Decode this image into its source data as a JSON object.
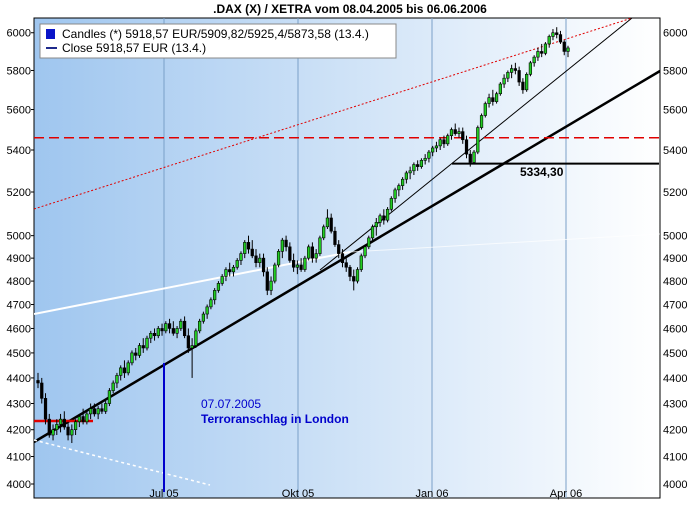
{
  "chart_data": {
    "type": "candlestick",
    "title": ".DAX (X) / XETRA vom 08.04.2005 bis 06.06.2006",
    "legend": [
      {
        "name": "Candles (*) 5918,57 EUR/5909,82/5925,4/5873,58 (13.4.)",
        "swatch": "#0a14c8"
      },
      {
        "name": "Close 5918,57 EUR (13.4.)",
        "swatch": "#1e2a8c"
      }
    ],
    "legend_position": "top-left",
    "y_ticks": [
      4000,
      4100,
      4200,
      4300,
      4400,
      4500,
      4600,
      4700,
      4800,
      4900,
      5000,
      5200,
      5400,
      5600,
      5800,
      6000
    ],
    "x_ticks": [
      "Jul 05",
      "Okt 05",
      "Jan 06",
      "Apr 06"
    ],
    "ylim": [
      3950,
      6080
    ],
    "y_scale": "log",
    "grid": "vertical",
    "colors": {
      "up": "#22cc22",
      "down": "#000000",
      "bg_left": "#9fc6ef",
      "bg_right": "#ffffff"
    },
    "trend_lines": [
      {
        "label": "support (thick)",
        "color": "#000000"
      },
      {
        "label": "steep trend",
        "color": "#000000"
      },
      {
        "label": "upper channel",
        "color": "#e00000",
        "style": "dotted"
      },
      {
        "label": "resistance",
        "color": "#e00000",
        "style": "dashed",
        "value": 5460
      },
      {
        "label": "lower white line",
        "color": "#ffffff"
      },
      {
        "label": "upper white line",
        "color": "#ffffff"
      },
      {
        "label": "support level",
        "color": "#000000",
        "value": 5334.3,
        "text": "5334,30"
      },
      {
        "label": "start level",
        "color": "#e00000"
      }
    ],
    "annotations": [
      {
        "date": "07.07.2005",
        "text_lines": [
          "07.07.2005",
          "Terroranschlag in London"
        ],
        "color": "#0000cc"
      }
    ],
    "candles": [
      [
        4390,
        4420,
        4360,
        4380
      ],
      [
        4380,
        4400,
        4300,
        4320
      ],
      [
        4320,
        4340,
        4220,
        4240
      ],
      [
        4240,
        4260,
        4170,
        4180
      ],
      [
        4180,
        4220,
        4160,
        4200
      ],
      [
        4200,
        4240,
        4180,
        4220
      ],
      [
        4220,
        4260,
        4190,
        4240
      ],
      [
        4240,
        4270,
        4200,
        4210
      ],
      [
        4210,
        4230,
        4160,
        4180
      ],
      [
        4180,
        4220,
        4150,
        4200
      ],
      [
        4200,
        4240,
        4180,
        4230
      ],
      [
        4230,
        4260,
        4210,
        4250
      ],
      [
        4250,
        4280,
        4220,
        4230
      ],
      [
        4230,
        4270,
        4220,
        4260
      ],
      [
        4260,
        4300,
        4240,
        4280
      ],
      [
        4280,
        4300,
        4250,
        4260
      ],
      [
        4260,
        4290,
        4240,
        4280
      ],
      [
        4280,
        4300,
        4260,
        4270
      ],
      [
        4270,
        4310,
        4260,
        4300
      ],
      [
        4300,
        4360,
        4290,
        4350
      ],
      [
        4350,
        4390,
        4340,
        4380
      ],
      [
        4380,
        4420,
        4360,
        4410
      ],
      [
        4410,
        4450,
        4390,
        4440
      ],
      [
        4440,
        4470,
        4400,
        4420
      ],
      [
        4420,
        4470,
        4410,
        4460
      ],
      [
        4460,
        4510,
        4450,
        4500
      ],
      [
        4500,
        4520,
        4470,
        4490
      ],
      [
        4490,
        4540,
        4480,
        4530
      ],
      [
        4530,
        4560,
        4500,
        4520
      ],
      [
        4520,
        4570,
        4510,
        4560
      ],
      [
        4560,
        4590,
        4540,
        4580
      ],
      [
        4580,
        4600,
        4550,
        4570
      ],
      [
        4570,
        4610,
        4560,
        4600
      ],
      [
        4600,
        4620,
        4570,
        4590
      ],
      [
        4590,
        4630,
        4580,
        4620
      ],
      [
        4620,
        4640,
        4580,
        4600
      ],
      [
        4600,
        4630,
        4570,
        4580
      ],
      [
        4580,
        4610,
        4560,
        4600
      ],
      [
        4600,
        4640,
        4590,
        4630
      ],
      [
        4630,
        4650,
        4560,
        4570
      ],
      [
        4570,
        4600,
        4500,
        4520
      ],
      [
        4520,
        4560,
        4400,
        4530
      ],
      [
        4530,
        4600,
        4520,
        4590
      ],
      [
        4590,
        4640,
        4580,
        4630
      ],
      [
        4630,
        4670,
        4620,
        4660
      ],
      [
        4660,
        4700,
        4640,
        4690
      ],
      [
        4690,
        4730,
        4680,
        4720
      ],
      [
        4720,
        4770,
        4700,
        4760
      ],
      [
        4760,
        4800,
        4750,
        4790
      ],
      [
        4790,
        4830,
        4780,
        4820
      ],
      [
        4820,
        4860,
        4800,
        4850
      ],
      [
        4850,
        4880,
        4820,
        4840
      ],
      [
        4840,
        4870,
        4820,
        4860
      ],
      [
        4860,
        4900,
        4850,
        4890
      ],
      [
        4890,
        4930,
        4870,
        4920
      ],
      [
        4920,
        4980,
        4900,
        4970
      ],
      [
        4970,
        5000,
        4920,
        4940
      ],
      [
        4940,
        4980,
        4900,
        4910
      ],
      [
        4910,
        4940,
        4860,
        4880
      ],
      [
        4880,
        4920,
        4860,
        4900
      ],
      [
        4900,
        4920,
        4820,
        4840
      ],
      [
        4840,
        4860,
        4740,
        4760
      ],
      [
        4760,
        4820,
        4740,
        4800
      ],
      [
        4800,
        4880,
        4790,
        4870
      ],
      [
        4870,
        4940,
        4860,
        4930
      ],
      [
        4930,
        4990,
        4900,
        4980
      ],
      [
        4980,
        5000,
        4930,
        4950
      ],
      [
        4950,
        4970,
        4880,
        4890
      ],
      [
        4890,
        4920,
        4840,
        4860
      ],
      [
        4860,
        4890,
        4830,
        4870
      ],
      [
        4870,
        4900,
        4840,
        4850
      ],
      [
        4850,
        4910,
        4840,
        4900
      ],
      [
        4900,
        4960,
        4890,
        4950
      ],
      [
        4950,
        4970,
        4880,
        4900
      ],
      [
        4900,
        4940,
        4880,
        4920
      ],
      [
        4920,
        5000,
        4910,
        4990
      ],
      [
        4990,
        5050,
        4980,
        5040
      ],
      [
        5040,
        5120,
        5030,
        5080
      ],
      [
        5080,
        5100,
        5010,
        5020
      ],
      [
        5020,
        5040,
        4950,
        4960
      ],
      [
        4960,
        4980,
        4900,
        4920
      ],
      [
        4920,
        4940,
        4860,
        4880
      ],
      [
        4880,
        4900,
        4840,
        4860
      ],
      [
        4860,
        4870,
        4800,
        4820
      ],
      [
        4820,
        4850,
        4760,
        4800
      ],
      [
        4800,
        4860,
        4790,
        4850
      ],
      [
        4850,
        4920,
        4840,
        4910
      ],
      [
        4910,
        4960,
        4900,
        4950
      ],
      [
        4950,
        5000,
        4940,
        4990
      ],
      [
        4990,
        5050,
        4980,
        5040
      ],
      [
        5040,
        5080,
        5000,
        5060
      ],
      [
        5060,
        5100,
        5040,
        5090
      ],
      [
        5090,
        5120,
        5050,
        5070
      ],
      [
        5070,
        5130,
        5060,
        5120
      ],
      [
        5120,
        5180,
        5110,
        5170
      ],
      [
        5170,
        5220,
        5150,
        5210
      ],
      [
        5210,
        5240,
        5180,
        5230
      ],
      [
        5230,
        5270,
        5210,
        5260
      ],
      [
        5260,
        5300,
        5240,
        5290
      ],
      [
        5290,
        5320,
        5260,
        5300
      ],
      [
        5300,
        5340,
        5280,
        5330
      ],
      [
        5330,
        5350,
        5300,
        5320
      ],
      [
        5320,
        5360,
        5310,
        5350
      ],
      [
        5350,
        5380,
        5330,
        5360
      ],
      [
        5360,
        5400,
        5340,
        5390
      ],
      [
        5390,
        5420,
        5370,
        5410
      ],
      [
        5410,
        5440,
        5390,
        5420
      ],
      [
        5420,
        5460,
        5400,
        5450
      ],
      [
        5450,
        5470,
        5410,
        5430
      ],
      [
        5430,
        5480,
        5420,
        5470
      ],
      [
        5470,
        5510,
        5450,
        5500
      ],
      [
        5500,
        5530,
        5470,
        5480
      ],
      [
        5480,
        5510,
        5460,
        5490
      ],
      [
        5490,
        5510,
        5430,
        5450
      ],
      [
        5450,
        5470,
        5360,
        5380
      ],
      [
        5380,
        5400,
        5320,
        5340
      ],
      [
        5340,
        5400,
        5330,
        5390
      ],
      [
        5390,
        5520,
        5380,
        5510
      ],
      [
        5510,
        5580,
        5500,
        5570
      ],
      [
        5570,
        5640,
        5560,
        5630
      ],
      [
        5630,
        5680,
        5610,
        5660
      ],
      [
        5660,
        5700,
        5620,
        5640
      ],
      [
        5640,
        5690,
        5630,
        5680
      ],
      [
        5680,
        5740,
        5670,
        5730
      ],
      [
        5730,
        5780,
        5710,
        5760
      ],
      [
        5760,
        5800,
        5740,
        5790
      ],
      [
        5790,
        5830,
        5760,
        5810
      ],
      [
        5810,
        5840,
        5780,
        5800
      ],
      [
        5800,
        5820,
        5720,
        5740
      ],
      [
        5740,
        5760,
        5680,
        5700
      ],
      [
        5700,
        5790,
        5690,
        5780
      ],
      [
        5780,
        5850,
        5770,
        5840
      ],
      [
        5840,
        5880,
        5820,
        5870
      ],
      [
        5870,
        5920,
        5850,
        5900
      ],
      [
        5900,
        5940,
        5870,
        5890
      ],
      [
        5890,
        5950,
        5880,
        5940
      ],
      [
        5940,
        5990,
        5920,
        5980
      ],
      [
        5980,
        6020,
        5960,
        6000
      ],
      [
        6000,
        6030,
        5970,
        5990
      ],
      [
        5990,
        6010,
        5940,
        5950
      ],
      [
        5950,
        5960,
        5880,
        5900
      ],
      [
        5900,
        5930,
        5870,
        5918.57
      ]
    ]
  }
}
